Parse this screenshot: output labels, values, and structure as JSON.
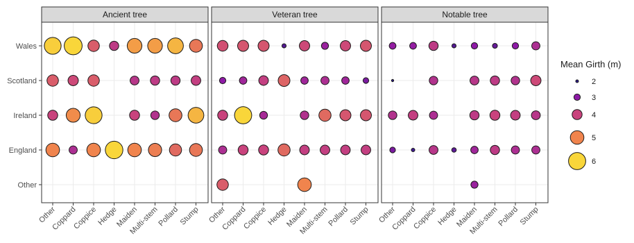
{
  "chart_data": {
    "type": "scatter",
    "facets": [
      "Ancient tree",
      "Veteran tree",
      "Notable tree"
    ],
    "x_categories": [
      "Other",
      "Coppard",
      "Coppice",
      "Hedge",
      "Maiden",
      "Multi-stem",
      "Pollard",
      "Stump"
    ],
    "y_categories": [
      "Wales",
      "Scotland",
      "Ireland",
      "England",
      "Other"
    ],
    "legend": {
      "title": "Mean Girth (m)",
      "values": [
        2,
        3,
        4,
        5,
        6
      ],
      "colors": [
        "#2d1a8a",
        "#8e1aa6",
        "#c9437d",
        "#f0844d",
        "#f9d63a"
      ],
      "placement": "right"
    },
    "grid": true,
    "points": [
      {
        "facet": "Ancient tree",
        "x": "Other",
        "y": "Wales",
        "value": 5.9
      },
      {
        "facet": "Ancient tree",
        "x": "Coppard",
        "y": "Wales",
        "value": 6.2
      },
      {
        "facet": "Ancient tree",
        "x": "Coppice",
        "y": "Wales",
        "value": 4.4
      },
      {
        "facet": "Ancient tree",
        "x": "Hedge",
        "y": "Wales",
        "value": 3.8
      },
      {
        "facet": "Ancient tree",
        "x": "Maiden",
        "y": "Wales",
        "value": 5.3
      },
      {
        "facet": "Ancient tree",
        "x": "Multi-stem",
        "y": "Wales",
        "value": 5.3
      },
      {
        "facet": "Ancient tree",
        "x": "Pollard",
        "y": "Wales",
        "value": 5.6
      },
      {
        "facet": "Ancient tree",
        "x": "Stump",
        "y": "Wales",
        "value": 4.8
      },
      {
        "facet": "Ancient tree",
        "x": "Other",
        "y": "Scotland",
        "value": 4.4
      },
      {
        "facet": "Ancient tree",
        "x": "Coppard",
        "y": "Scotland",
        "value": 4.1
      },
      {
        "facet": "Ancient tree",
        "x": "Coppice",
        "y": "Scotland",
        "value": 4.4
      },
      {
        "facet": "Ancient tree",
        "x": "Maiden",
        "y": "Scotland",
        "value": 3.7
      },
      {
        "facet": "Ancient tree",
        "x": "Multi-stem",
        "y": "Scotland",
        "value": 3.8
      },
      {
        "facet": "Ancient tree",
        "x": "Pollard",
        "y": "Scotland",
        "value": 3.8
      },
      {
        "facet": "Ancient tree",
        "x": "Stump",
        "y": "Scotland",
        "value": 3.9
      },
      {
        "facet": "Ancient tree",
        "x": "Other",
        "y": "Ireland",
        "value": 4.0
      },
      {
        "facet": "Ancient tree",
        "x": "Coppard",
        "y": "Ireland",
        "value": 5.1
      },
      {
        "facet": "Ancient tree",
        "x": "Coppice",
        "y": "Ireland",
        "value": 5.9
      },
      {
        "facet": "Ancient tree",
        "x": "Maiden",
        "y": "Ireland",
        "value": 4.0
      },
      {
        "facet": "Ancient tree",
        "x": "Multi-stem",
        "y": "Ireland",
        "value": 3.6
      },
      {
        "facet": "Ancient tree",
        "x": "Pollard",
        "y": "Ireland",
        "value": 4.8
      },
      {
        "facet": "Ancient tree",
        "x": "Stump",
        "y": "Ireland",
        "value": 5.6
      },
      {
        "facet": "Ancient tree",
        "x": "Other",
        "y": "England",
        "value": 5.0
      },
      {
        "facet": "Ancient tree",
        "x": "Coppard",
        "y": "England",
        "value": 3.5
      },
      {
        "facet": "Ancient tree",
        "x": "Coppice",
        "y": "England",
        "value": 5.0
      },
      {
        "facet": "Ancient tree",
        "x": "Hedge",
        "y": "England",
        "value": 6.1
      },
      {
        "facet": "Ancient tree",
        "x": "Maiden",
        "y": "England",
        "value": 5.0
      },
      {
        "facet": "Ancient tree",
        "x": "Multi-stem",
        "y": "England",
        "value": 4.9
      },
      {
        "facet": "Ancient tree",
        "x": "Pollard",
        "y": "England",
        "value": 4.6
      },
      {
        "facet": "Ancient tree",
        "x": "Stump",
        "y": "England",
        "value": 4.8
      },
      {
        "facet": "Veteran tree",
        "x": "Other",
        "y": "Wales",
        "value": 4.2
      },
      {
        "facet": "Veteran tree",
        "x": "Coppard",
        "y": "Wales",
        "value": 4.3
      },
      {
        "facet": "Veteran tree",
        "x": "Coppice",
        "y": "Wales",
        "value": 4.3
      },
      {
        "facet": "Veteran tree",
        "x": "Hedge",
        "y": "Wales",
        "value": 2.4
      },
      {
        "facet": "Veteran tree",
        "x": "Maiden",
        "y": "Wales",
        "value": 4.1
      },
      {
        "facet": "Veteran tree",
        "x": "Multi-stem",
        "y": "Wales",
        "value": 3.2
      },
      {
        "facet": "Veteran tree",
        "x": "Pollard",
        "y": "Wales",
        "value": 4.1
      },
      {
        "facet": "Veteran tree",
        "x": "Stump",
        "y": "Wales",
        "value": 4.3
      },
      {
        "facet": "Veteran tree",
        "x": "Other",
        "y": "Scotland",
        "value": 3.0
      },
      {
        "facet": "Veteran tree",
        "x": "Coppard",
        "y": "Scotland",
        "value": 3.3
      },
      {
        "facet": "Veteran tree",
        "x": "Coppice",
        "y": "Scotland",
        "value": 3.9
      },
      {
        "facet": "Veteran tree",
        "x": "Hedge",
        "y": "Scotland",
        "value": 4.5
      },
      {
        "facet": "Veteran tree",
        "x": "Maiden",
        "y": "Scotland",
        "value": 3.3
      },
      {
        "facet": "Veteran tree",
        "x": "Multi-stem",
        "y": "Scotland",
        "value": 3.5
      },
      {
        "facet": "Veteran tree",
        "x": "Pollard",
        "y": "Scotland",
        "value": 3.3
      },
      {
        "facet": "Veteran tree",
        "x": "Stump",
        "y": "Scotland",
        "value": 2.8
      },
      {
        "facet": "Veteran tree",
        "x": "Other",
        "y": "Ireland",
        "value": 4.0
      },
      {
        "facet": "Veteran tree",
        "x": "Coppard",
        "y": "Ireland",
        "value": 6.0
      },
      {
        "facet": "Veteran tree",
        "x": "Coppice",
        "y": "Ireland",
        "value": 3.4
      },
      {
        "facet": "Veteran tree",
        "x": "Maiden",
        "y": "Ireland",
        "value": 3.6
      },
      {
        "facet": "Veteran tree",
        "x": "Multi-stem",
        "y": "Ireland",
        "value": 4.6
      },
      {
        "facet": "Veteran tree",
        "x": "Pollard",
        "y": "Ireland",
        "value": 4.3
      },
      {
        "facet": "Veteran tree",
        "x": "Stump",
        "y": "Ireland",
        "value": 4.3
      },
      {
        "facet": "Veteran tree",
        "x": "Other",
        "y": "England",
        "value": 3.5
      },
      {
        "facet": "Veteran tree",
        "x": "Coppard",
        "y": "England",
        "value": 4.0
      },
      {
        "facet": "Veteran tree",
        "x": "Coppice",
        "y": "England",
        "value": 4.0
      },
      {
        "facet": "Veteran tree",
        "x": "Hedge",
        "y": "England",
        "value": 4.6
      },
      {
        "facet": "Veteran tree",
        "x": "Maiden",
        "y": "England",
        "value": 3.9
      },
      {
        "facet": "Veteran tree",
        "x": "Multi-stem",
        "y": "England",
        "value": 3.9
      },
      {
        "facet": "Veteran tree",
        "x": "Pollard",
        "y": "England",
        "value": 3.9
      },
      {
        "facet": "Veteran tree",
        "x": "Stump",
        "y": "England",
        "value": 3.9
      },
      {
        "facet": "Veteran tree",
        "x": "Other",
        "y": "Other",
        "value": 4.4
      },
      {
        "facet": "Veteran tree",
        "x": "Maiden",
        "y": "Other",
        "value": 5.0
      },
      {
        "facet": "Notable tree",
        "x": "Other",
        "y": "Wales",
        "value": 3.1
      },
      {
        "facet": "Notable tree",
        "x": "Coppard",
        "y": "Wales",
        "value": 3.1
      },
      {
        "facet": "Notable tree",
        "x": "Coppice",
        "y": "Wales",
        "value": 3.8
      },
      {
        "facet": "Notable tree",
        "x": "Hedge",
        "y": "Wales",
        "value": 2.4
      },
      {
        "facet": "Notable tree",
        "x": "Maiden",
        "y": "Wales",
        "value": 3.0
      },
      {
        "facet": "Notable tree",
        "x": "Multi-stem",
        "y": "Wales",
        "value": 2.6
      },
      {
        "facet": "Notable tree",
        "x": "Pollard",
        "y": "Wales",
        "value": 3.0
      },
      {
        "facet": "Notable tree",
        "x": "Stump",
        "y": "Wales",
        "value": 3.5
      },
      {
        "facet": "Notable tree",
        "x": "Other",
        "y": "Scotland",
        "value": 1.5
      },
      {
        "facet": "Notable tree",
        "x": "Coppice",
        "y": "Scotland",
        "value": 3.6
      },
      {
        "facet": "Notable tree",
        "x": "Maiden",
        "y": "Scotland",
        "value": 3.7
      },
      {
        "facet": "Notable tree",
        "x": "Multi-stem",
        "y": "Scotland",
        "value": 3.8
      },
      {
        "facet": "Notable tree",
        "x": "Pollard",
        "y": "Scotland",
        "value": 3.6
      },
      {
        "facet": "Notable tree",
        "x": "Stump",
        "y": "Scotland",
        "value": 4.1
      },
      {
        "facet": "Notable tree",
        "x": "Other",
        "y": "Ireland",
        "value": 3.6
      },
      {
        "facet": "Notable tree",
        "x": "Coppard",
        "y": "Ireland",
        "value": 3.9
      },
      {
        "facet": "Notable tree",
        "x": "Coppice",
        "y": "Ireland",
        "value": 3.5
      },
      {
        "facet": "Notable tree",
        "x": "Maiden",
        "y": "Ireland",
        "value": 3.8
      },
      {
        "facet": "Notable tree",
        "x": "Multi-stem",
        "y": "Ireland",
        "value": 4.0
      },
      {
        "facet": "Notable tree",
        "x": "Pollard",
        "y": "Ireland",
        "value": 3.9
      },
      {
        "facet": "Notable tree",
        "x": "Stump",
        "y": "Ireland",
        "value": 3.7
      },
      {
        "facet": "Notable tree",
        "x": "Other",
        "y": "England",
        "value": 2.8
      },
      {
        "facet": "Notable tree",
        "x": "Coppard",
        "y": "England",
        "value": 2.2
      },
      {
        "facet": "Notable tree",
        "x": "Coppice",
        "y": "England",
        "value": 3.7
      },
      {
        "facet": "Notable tree",
        "x": "Hedge",
        "y": "England",
        "value": 2.5
      },
      {
        "facet": "Notable tree",
        "x": "Maiden",
        "y": "England",
        "value": 3.3
      },
      {
        "facet": "Notable tree",
        "x": "Multi-stem",
        "y": "England",
        "value": 3.8
      },
      {
        "facet": "Notable tree",
        "x": "Pollard",
        "y": "England",
        "value": 3.5
      },
      {
        "facet": "Notable tree",
        "x": "Stump",
        "y": "England",
        "value": 3.5
      },
      {
        "facet": "Notable tree",
        "x": "Maiden",
        "y": "Other",
        "value": 3.2
      }
    ]
  }
}
